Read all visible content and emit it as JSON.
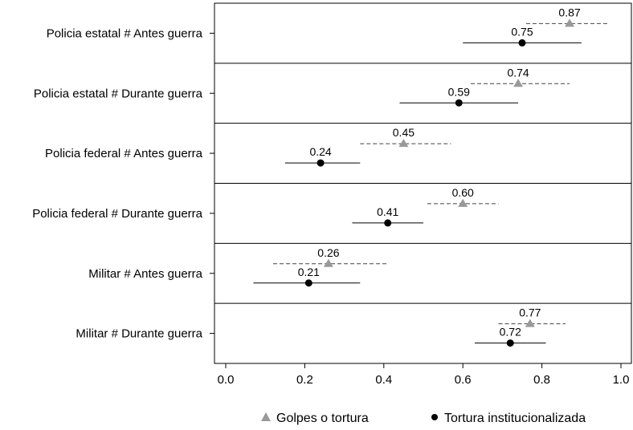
{
  "chart_data": {
    "type": "dot-interval",
    "title": "",
    "xlabel": "",
    "ylabel": "",
    "xlim": [
      0.0,
      1.0
    ],
    "xticks": [
      0.0,
      0.2,
      0.4,
      0.6,
      0.8,
      1.0
    ],
    "xtick_labels": [
      "0.0",
      "0.2",
      "0.4",
      "0.6",
      "0.8",
      "1.0"
    ],
    "grid": false,
    "legend_position": "bottom",
    "categories": [
      "Policia estatal # Antes guerra",
      "Policia estatal # Durante guerra",
      "Policia federal # Antes guerra",
      "Policia federal # Durante guerra",
      "Militar # Antes guerra",
      "Militar # Durante guerra"
    ],
    "series": [
      {
        "name": "Golpes o tortura",
        "marker": "triangle",
        "line_style": "dashed",
        "color": "#999999",
        "values": [
          0.87,
          0.74,
          0.45,
          0.6,
          0.26,
          0.77
        ],
        "labels": [
          "0.87",
          "0.74",
          "0.45",
          "0.60",
          "0.26",
          "0.77"
        ],
        "ci_low": [
          0.76,
          0.62,
          0.34,
          0.51,
          0.12,
          0.69
        ],
        "ci_high": [
          0.97,
          0.87,
          0.57,
          0.69,
          0.41,
          0.86
        ]
      },
      {
        "name": "Tortura institucionalizada",
        "marker": "circle",
        "line_style": "solid",
        "color": "#000000",
        "values": [
          0.75,
          0.59,
          0.24,
          0.41,
          0.21,
          0.72
        ],
        "labels": [
          "0.75",
          "0.59",
          "0.24",
          "0.41",
          "0.21",
          "0.72"
        ],
        "ci_low": [
          0.6,
          0.44,
          0.15,
          0.32,
          0.07,
          0.63
        ],
        "ci_high": [
          0.9,
          0.74,
          0.34,
          0.5,
          0.34,
          0.81
        ]
      }
    ]
  }
}
